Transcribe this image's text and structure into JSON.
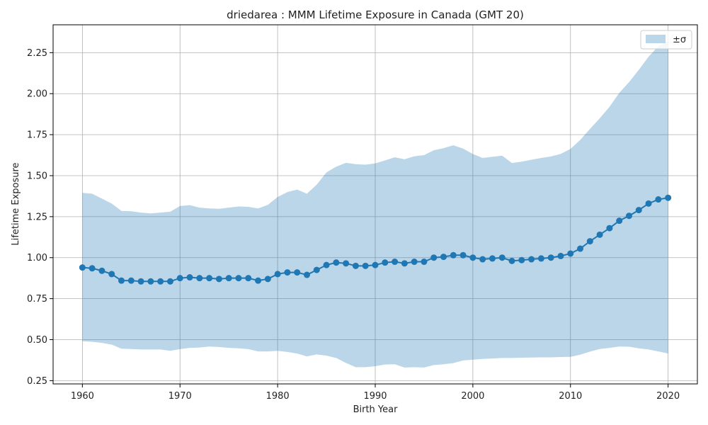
{
  "chart_data": {
    "type": "line",
    "title": "driedarea : MMM Lifetime Exposure in Canada (GMT 20)",
    "xlabel": "Birth Year",
    "ylabel": "Lifetime Exposure",
    "xlim": [
      1957,
      2023
    ],
    "ylim": [
      0.23,
      2.42
    ],
    "xticks": [
      1960,
      1970,
      1980,
      1990,
      2000,
      2010,
      2020
    ],
    "yticks": [
      0.25,
      0.5,
      0.75,
      1.0,
      1.25,
      1.5,
      1.75,
      2.0,
      2.25
    ],
    "grid": true,
    "legend": {
      "placement": "top-right",
      "entries": [
        "±σ"
      ]
    },
    "colors": {
      "line": "#1f77b4",
      "band": "#1f77b4",
      "grid": "#b0b0b0"
    },
    "x": [
      1960,
      1961,
      1962,
      1963,
      1964,
      1965,
      1966,
      1967,
      1968,
      1969,
      1970,
      1971,
      1972,
      1973,
      1974,
      1975,
      1976,
      1977,
      1978,
      1979,
      1980,
      1981,
      1982,
      1983,
      1984,
      1985,
      1986,
      1987,
      1988,
      1989,
      1990,
      1991,
      1992,
      1993,
      1994,
      1995,
      1996,
      1997,
      1998,
      1999,
      2000,
      2001,
      2002,
      2003,
      2004,
      2005,
      2006,
      2007,
      2008,
      2009,
      2010,
      2011,
      2012,
      2013,
      2014,
      2015,
      2016,
      2017,
      2018,
      2019,
      2020
    ],
    "series": [
      {
        "values": [
          0.94,
          0.935,
          0.92,
          0.9,
          0.86,
          0.86,
          0.855,
          0.855,
          0.855,
          0.855,
          0.875,
          0.88,
          0.875,
          0.875,
          0.87,
          0.875,
          0.875,
          0.875,
          0.86,
          0.87,
          0.9,
          0.91,
          0.91,
          0.895,
          0.925,
          0.955,
          0.97,
          0.965,
          0.95,
          0.95,
          0.955,
          0.97,
          0.975,
          0.965,
          0.975,
          0.975,
          1.0,
          1.005,
          1.015,
          1.015,
          1.0,
          0.99,
          0.995,
          1.0,
          0.98,
          0.985,
          0.99,
          0.995,
          1.0,
          1.01,
          1.025,
          1.055,
          1.1,
          1.14,
          1.18,
          1.225,
          1.255,
          1.29,
          1.33,
          1.355,
          1.365
        ]
      }
    ],
    "band": {
      "label": "±σ",
      "upper": [
        1.395,
        1.39,
        1.36,
        1.33,
        1.285,
        1.283,
        1.275,
        1.27,
        1.275,
        1.28,
        1.315,
        1.32,
        1.305,
        1.3,
        1.298,
        1.305,
        1.312,
        1.31,
        1.3,
        1.322,
        1.37,
        1.4,
        1.415,
        1.39,
        1.445,
        1.52,
        1.555,
        1.578,
        1.57,
        1.567,
        1.575,
        1.593,
        1.612,
        1.6,
        1.618,
        1.625,
        1.655,
        1.668,
        1.685,
        1.665,
        1.632,
        1.608,
        1.615,
        1.622,
        1.577,
        1.585,
        1.597,
        1.608,
        1.617,
        1.633,
        1.663,
        1.718,
        1.785,
        1.85,
        1.92,
        2.005,
        2.07,
        2.145,
        2.225,
        2.29,
        2.32
      ],
      "lower": [
        0.49,
        0.487,
        0.48,
        0.47,
        0.445,
        0.443,
        0.44,
        0.44,
        0.44,
        0.432,
        0.442,
        0.45,
        0.452,
        0.458,
        0.455,
        0.45,
        0.447,
        0.442,
        0.428,
        0.428,
        0.432,
        0.425,
        0.415,
        0.398,
        0.41,
        0.402,
        0.388,
        0.358,
        0.332,
        0.332,
        0.338,
        0.348,
        0.35,
        0.33,
        0.332,
        0.33,
        0.345,
        0.35,
        0.357,
        0.373,
        0.378,
        0.382,
        0.385,
        0.388,
        0.388,
        0.39,
        0.391,
        0.392,
        0.392,
        0.394,
        0.395,
        0.408,
        0.427,
        0.443,
        0.45,
        0.458,
        0.457,
        0.447,
        0.44,
        0.428,
        0.415
      ]
    }
  }
}
